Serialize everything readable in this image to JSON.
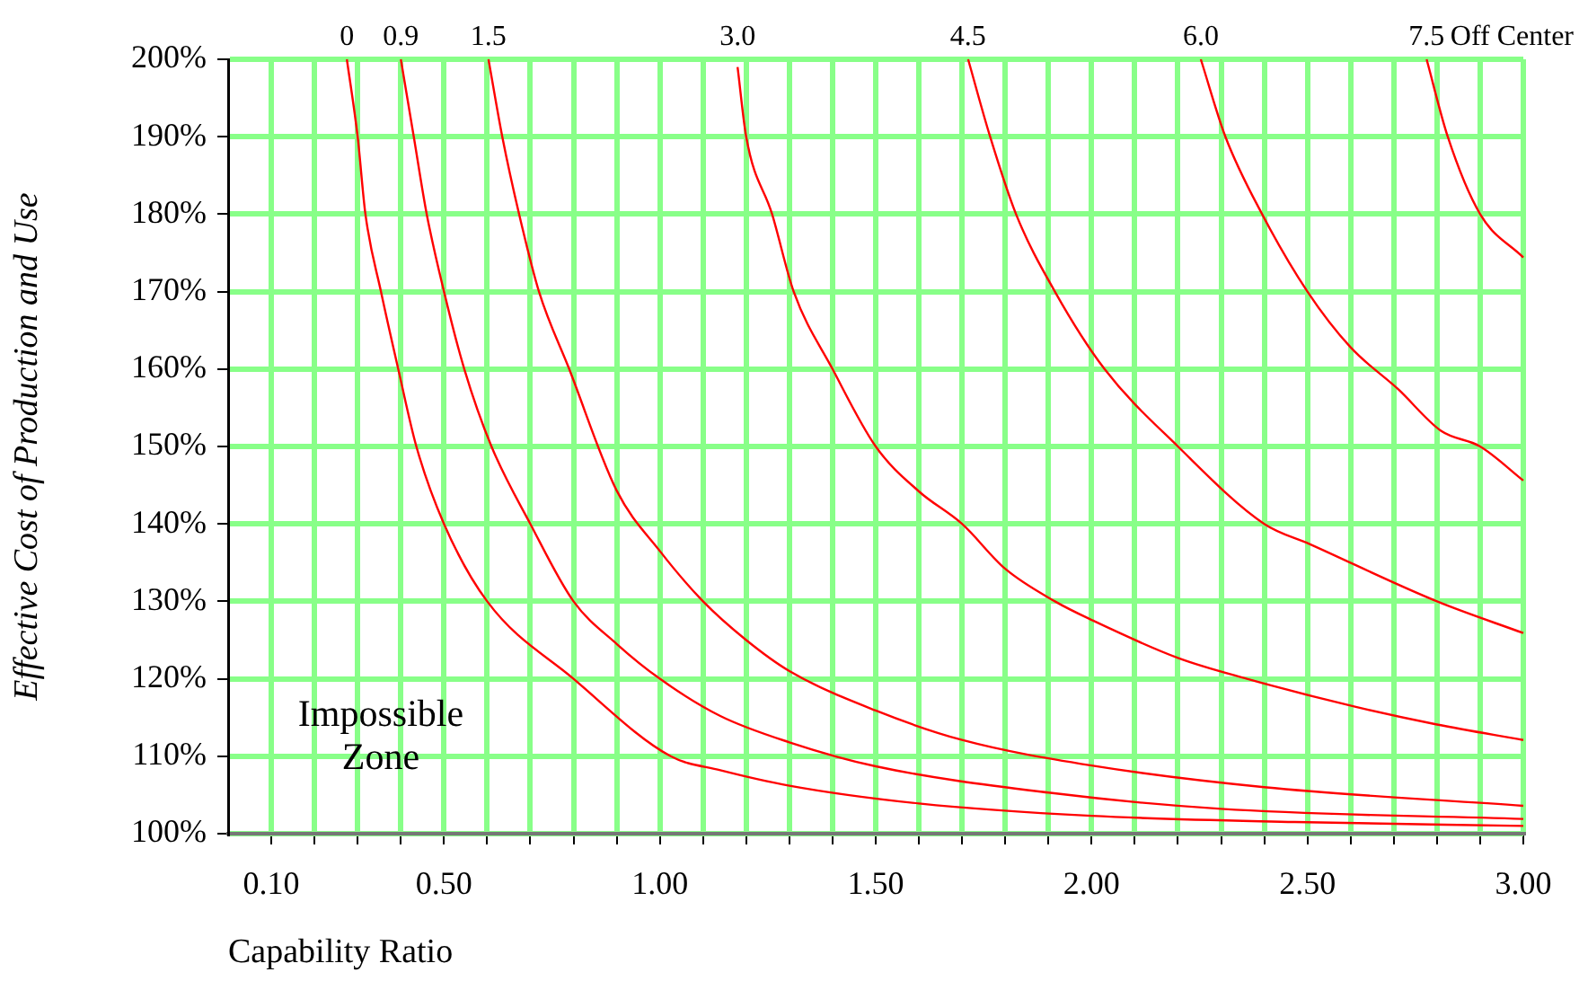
{
  "chart_data": {
    "type": "line",
    "xlabel": "Capability Ratio",
    "ylabel": "Effective Cost of Production and Use",
    "legend_title": "Off Center",
    "legend": false,
    "grid": true,
    "marker": "none",
    "line_style": "solid",
    "xlim": [
      0,
      3.0
    ],
    "ylim": [
      100,
      200
    ],
    "xticks": [
      {
        "value": 0.1,
        "label": "0.10"
      },
      {
        "value": 0.2,
        "label": null
      },
      {
        "value": 0.3,
        "label": null
      },
      {
        "value": 0.4,
        "label": null
      },
      {
        "value": 0.5,
        "label": "0.50"
      },
      {
        "value": 0.6,
        "label": null
      },
      {
        "value": 0.7,
        "label": null
      },
      {
        "value": 0.8,
        "label": null
      },
      {
        "value": 0.9,
        "label": null
      },
      {
        "value": 1.0,
        "label": "1.00"
      },
      {
        "value": 1.1,
        "label": null
      },
      {
        "value": 1.2,
        "label": null
      },
      {
        "value": 1.3,
        "label": null
      },
      {
        "value": 1.4,
        "label": null
      },
      {
        "value": 1.5,
        "label": "1.50"
      },
      {
        "value": 1.6,
        "label": null
      },
      {
        "value": 1.7,
        "label": null
      },
      {
        "value": 1.8,
        "label": null
      },
      {
        "value": 1.9,
        "label": null
      },
      {
        "value": 2.0,
        "label": "2.00"
      },
      {
        "value": 2.1,
        "label": null
      },
      {
        "value": 2.2,
        "label": null
      },
      {
        "value": 2.3,
        "label": null
      },
      {
        "value": 2.4,
        "label": null
      },
      {
        "value": 2.5,
        "label": "2.50"
      },
      {
        "value": 2.6,
        "label": null
      },
      {
        "value": 2.7,
        "label": null
      },
      {
        "value": 2.8,
        "label": null
      },
      {
        "value": 2.9,
        "label": null
      },
      {
        "value": 3.0,
        "label": "3.00"
      }
    ],
    "yticks": [
      {
        "value": 100,
        "label": "100%"
      },
      {
        "value": 110,
        "label": "110%"
      },
      {
        "value": 120,
        "label": "120%"
      },
      {
        "value": 130,
        "label": "130%"
      },
      {
        "value": 140,
        "label": "140%"
      },
      {
        "value": 150,
        "label": "150%"
      },
      {
        "value": 160,
        "label": "160%"
      },
      {
        "value": 170,
        "label": "170%"
      },
      {
        "value": 180,
        "label": "180%"
      },
      {
        "value": 190,
        "label": "190%"
      },
      {
        "value": 200,
        "label": "200%"
      }
    ],
    "annotations": [
      "Impossible Zone"
    ],
    "series": [
      {
        "name": "0",
        "color": "#ff0000",
        "x": [
          0.275,
          0.3,
          0.318,
          0.354,
          0.394,
          0.436,
          0.5,
          0.6,
          0.8,
          1.025,
          1.14,
          1.3,
          1.6,
          2.0,
          2.47,
          3.0
        ],
        "values": [
          200,
          190,
          180,
          170,
          160,
          150,
          140,
          130,
          120,
          110,
          108.2,
          106.2,
          103.9,
          102.3,
          101.5,
          101.0
        ]
      },
      {
        "name": "0.9",
        "color": "#ff0000",
        "x": [
          0.4,
          0.43,
          0.46,
          0.5,
          0.547,
          0.61,
          0.7,
          0.8,
          0.9,
          1.0,
          1.14,
          1.3,
          1.5,
          1.9,
          2.3,
          3.0
        ],
        "values": [
          200,
          190,
          180,
          170,
          160,
          150,
          140,
          130,
          124.5,
          120,
          115.2,
          111.8,
          108.7,
          105.3,
          103.2,
          101.9
        ]
      },
      {
        "name": "1.5",
        "color": "#ff0000",
        "x": [
          0.603,
          0.635,
          0.674,
          0.72,
          0.79,
          0.9,
          1.0,
          1.1,
          1.2,
          1.3,
          1.5,
          1.7,
          2.0,
          2.4,
          3.0
        ],
        "values": [
          200,
          190,
          180,
          170,
          160,
          144.3,
          136.5,
          130,
          125.0,
          121.0,
          115.9,
          112.1,
          108.8,
          106.0,
          103.6
        ]
      },
      {
        "name": "3.0",
        "color": "#ff0000",
        "x": [
          1.18,
          1.2,
          1.26,
          1.31,
          1.4,
          1.5,
          1.6,
          1.7,
          1.8,
          1.915,
          2.0,
          2.2,
          2.36,
          2.61,
          2.8,
          3.0
        ],
        "values": [
          199,
          190,
          180,
          170,
          160,
          150,
          144.2,
          140,
          134.2,
          130,
          127.6,
          122.7,
          120,
          116.4,
          114.1,
          112.1
        ]
      },
      {
        "name": "4.5",
        "color": "#ff0000",
        "x": [
          1.714,
          1.765,
          1.825,
          1.915,
          2.03,
          2.2,
          2.4,
          2.505,
          2.8,
          3.0
        ],
        "values": [
          200,
          190,
          180,
          170,
          160,
          150,
          140,
          137.4,
          130,
          125.9
        ]
      },
      {
        "name": "6.0",
        "color": "#ff0000",
        "x": [
          2.253,
          2.31,
          2.395,
          2.5,
          2.6,
          2.71,
          2.81,
          2.9,
          3.0
        ],
        "values": [
          200,
          190,
          180,
          170,
          162.8,
          157.4,
          152,
          150,
          145.6
        ]
      },
      {
        "name": "7.5",
        "color": "#ff0000",
        "x": [
          2.776,
          2.825,
          2.9,
          3.0
        ],
        "values": [
          200,
          190,
          180,
          174.4
        ]
      }
    ]
  }
}
